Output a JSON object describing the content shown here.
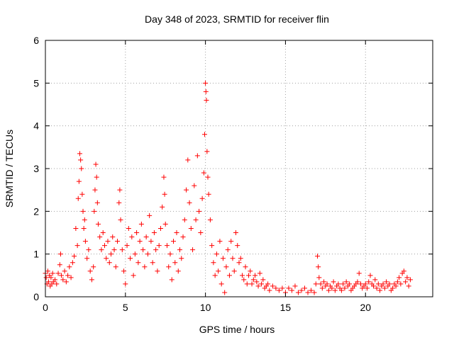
{
  "chart_data": {
    "type": "scatter",
    "title": "Day 348 of 2023, SRMTID for receiver flin",
    "xlabel": "GPS time / hours",
    "ylabel": "SRMTID / TECUs",
    "xlim": [
      0,
      24.2
    ],
    "ylim": [
      0,
      6
    ],
    "xticks": [
      0,
      5,
      10,
      15,
      20
    ],
    "yticks": [
      0,
      1,
      2,
      3,
      4,
      5,
      6
    ],
    "grid": true,
    "marker": "plus",
    "color": "#ff0000",
    "series": [
      {
        "name": "SRMTID",
        "points": [
          [
            0.0,
            0.55
          ],
          [
            0.05,
            0.45
          ],
          [
            0.1,
            0.3
          ],
          [
            0.15,
            0.6
          ],
          [
            0.2,
            0.35
          ],
          [
            0.25,
            0.5
          ],
          [
            0.3,
            0.25
          ],
          [
            0.35,
            0.45
          ],
          [
            0.4,
            0.3
          ],
          [
            0.45,
            0.55
          ],
          [
            0.5,
            0.35
          ],
          [
            0.6,
            0.4
          ],
          [
            0.7,
            0.3
          ],
          [
            0.8,
            0.55
          ],
          [
            0.9,
            0.75
          ],
          [
            0.95,
            1.0
          ],
          [
            1.0,
            0.5
          ],
          [
            1.1,
            0.4
          ],
          [
            1.2,
            0.6
          ],
          [
            1.3,
            0.35
          ],
          [
            1.4,
            0.5
          ],
          [
            1.5,
            0.7
          ],
          [
            1.6,
            0.45
          ],
          [
            1.7,
            0.8
          ],
          [
            1.8,
            0.95
          ],
          [
            1.9,
            1.6
          ],
          [
            2.0,
            1.2
          ],
          [
            2.05,
            2.3
          ],
          [
            2.1,
            2.7
          ],
          [
            2.15,
            3.35
          ],
          [
            2.2,
            3.2
          ],
          [
            2.25,
            3.0
          ],
          [
            2.3,
            2.4
          ],
          [
            2.35,
            2.0
          ],
          [
            2.4,
            1.6
          ],
          [
            2.45,
            1.8
          ],
          [
            2.5,
            1.3
          ],
          [
            2.6,
            0.9
          ],
          [
            2.7,
            1.1
          ],
          [
            2.8,
            0.6
          ],
          [
            2.9,
            0.4
          ],
          [
            3.0,
            0.7
          ],
          [
            3.05,
            2.0
          ],
          [
            3.1,
            2.5
          ],
          [
            3.15,
            3.1
          ],
          [
            3.2,
            2.8
          ],
          [
            3.25,
            2.2
          ],
          [
            3.3,
            1.7
          ],
          [
            3.4,
            1.4
          ],
          [
            3.5,
            1.1
          ],
          [
            3.6,
            1.5
          ],
          [
            3.7,
            1.2
          ],
          [
            3.8,
            0.9
          ],
          [
            3.9,
            1.3
          ],
          [
            4.0,
            0.8
          ],
          [
            4.1,
            1.0
          ],
          [
            4.2,
            1.4
          ],
          [
            4.3,
            1.1
          ],
          [
            4.4,
            0.7
          ],
          [
            4.5,
            1.3
          ],
          [
            4.6,
            2.2
          ],
          [
            4.65,
            2.5
          ],
          [
            4.7,
            1.8
          ],
          [
            4.8,
            1.1
          ],
          [
            4.9,
            0.6
          ],
          [
            5.0,
            0.3
          ],
          [
            5.1,
            1.2
          ],
          [
            5.2,
            1.6
          ],
          [
            5.3,
            0.9
          ],
          [
            5.4,
            1.4
          ],
          [
            5.5,
            0.5
          ],
          [
            5.6,
            1.0
          ],
          [
            5.7,
            1.5
          ],
          [
            5.8,
            0.8
          ],
          [
            5.9,
            1.3
          ],
          [
            6.0,
            1.7
          ],
          [
            6.1,
            1.1
          ],
          [
            6.2,
            0.7
          ],
          [
            6.3,
            1.4
          ],
          [
            6.4,
            1.0
          ],
          [
            6.5,
            1.9
          ],
          [
            6.6,
            1.3
          ],
          [
            6.7,
            0.8
          ],
          [
            6.8,
            1.5
          ],
          [
            6.9,
            1.1
          ],
          [
            7.0,
            0.6
          ],
          [
            7.1,
            1.2
          ],
          [
            7.2,
            1.6
          ],
          [
            7.3,
            2.1
          ],
          [
            7.4,
            2.8
          ],
          [
            7.45,
            2.4
          ],
          [
            7.5,
            1.7
          ],
          [
            7.6,
            1.2
          ],
          [
            7.7,
            0.7
          ],
          [
            7.8,
            1.0
          ],
          [
            7.9,
            0.4
          ],
          [
            8.0,
            1.3
          ],
          [
            8.1,
            0.8
          ],
          [
            8.2,
            1.5
          ],
          [
            8.3,
            0.6
          ],
          [
            8.4,
            1.1
          ],
          [
            8.5,
            0.9
          ],
          [
            8.6,
            1.4
          ],
          [
            8.7,
            1.8
          ],
          [
            8.8,
            2.5
          ],
          [
            8.9,
            3.2
          ],
          [
            9.0,
            2.2
          ],
          [
            9.1,
            1.6
          ],
          [
            9.2,
            1.1
          ],
          [
            9.3,
            2.6
          ],
          [
            9.4,
            1.8
          ],
          [
            9.5,
            3.3
          ],
          [
            9.6,
            2.0
          ],
          [
            9.7,
            1.5
          ],
          [
            9.8,
            2.3
          ],
          [
            9.9,
            2.9
          ],
          [
            9.95,
            3.8
          ],
          [
            10.0,
            5.0
          ],
          [
            10.03,
            4.8
          ],
          [
            10.06,
            4.6
          ],
          [
            10.1,
            3.4
          ],
          [
            10.15,
            2.8
          ],
          [
            10.2,
            2.4
          ],
          [
            10.3,
            1.8
          ],
          [
            10.4,
            1.2
          ],
          [
            10.5,
            0.8
          ],
          [
            10.6,
            0.5
          ],
          [
            10.7,
            1.0
          ],
          [
            10.8,
            0.6
          ],
          [
            10.9,
            1.3
          ],
          [
            11.0,
            0.3
          ],
          [
            11.1,
            0.9
          ],
          [
            11.2,
            0.1
          ],
          [
            11.3,
            0.7
          ],
          [
            11.4,
            1.1
          ],
          [
            11.5,
            0.5
          ],
          [
            11.6,
            1.3
          ],
          [
            11.7,
            0.9
          ],
          [
            11.8,
            0.6
          ],
          [
            11.9,
            1.5
          ],
          [
            12.0,
            1.2
          ],
          [
            12.1,
            0.8
          ],
          [
            12.2,
            0.9
          ],
          [
            12.3,
            0.5
          ],
          [
            12.4,
            0.4
          ],
          [
            12.5,
            0.7
          ],
          [
            12.6,
            0.3
          ],
          [
            12.7,
            0.5
          ],
          [
            12.8,
            0.6
          ],
          [
            12.9,
            0.3
          ],
          [
            13.0,
            0.4
          ],
          [
            13.1,
            0.5
          ],
          [
            13.2,
            0.35
          ],
          [
            13.3,
            0.25
          ],
          [
            13.4,
            0.55
          ],
          [
            13.5,
            0.3
          ],
          [
            13.6,
            0.4
          ],
          [
            13.7,
            0.2
          ],
          [
            13.8,
            0.25
          ],
          [
            13.9,
            0.3
          ],
          [
            14.0,
            0.15
          ],
          [
            14.2,
            0.25
          ],
          [
            14.4,
            0.2
          ],
          [
            14.6,
            0.15
          ],
          [
            14.8,
            0.2
          ],
          [
            15.0,
            0.1
          ],
          [
            15.2,
            0.2
          ],
          [
            15.4,
            0.15
          ],
          [
            15.6,
            0.25
          ],
          [
            15.8,
            0.1
          ],
          [
            16.0,
            0.15
          ],
          [
            16.2,
            0.2
          ],
          [
            16.4,
            0.1
          ],
          [
            16.6,
            0.15
          ],
          [
            16.8,
            0.1
          ],
          [
            16.9,
            0.3
          ],
          [
            17.0,
            0.95
          ],
          [
            17.05,
            0.7
          ],
          [
            17.1,
            0.45
          ],
          [
            17.2,
            0.3
          ],
          [
            17.3,
            0.2
          ],
          [
            17.4,
            0.35
          ],
          [
            17.5,
            0.25
          ],
          [
            17.6,
            0.3
          ],
          [
            17.7,
            0.15
          ],
          [
            17.8,
            0.25
          ],
          [
            17.9,
            0.2
          ],
          [
            18.0,
            0.35
          ],
          [
            18.1,
            0.15
          ],
          [
            18.2,
            0.25
          ],
          [
            18.3,
            0.3
          ],
          [
            18.4,
            0.2
          ],
          [
            18.5,
            0.15
          ],
          [
            18.6,
            0.3
          ],
          [
            18.7,
            0.2
          ],
          [
            18.8,
            0.35
          ],
          [
            18.9,
            0.25
          ],
          [
            19.0,
            0.3
          ],
          [
            19.1,
            0.15
          ],
          [
            19.2,
            0.2
          ],
          [
            19.3,
            0.25
          ],
          [
            19.4,
            0.3
          ],
          [
            19.5,
            0.35
          ],
          [
            19.6,
            0.55
          ],
          [
            19.7,
            0.3
          ],
          [
            19.8,
            0.2
          ],
          [
            19.9,
            0.25
          ],
          [
            20.0,
            0.3
          ],
          [
            20.1,
            0.2
          ],
          [
            20.2,
            0.35
          ],
          [
            20.3,
            0.5
          ],
          [
            20.4,
            0.3
          ],
          [
            20.5,
            0.25
          ],
          [
            20.6,
            0.4
          ],
          [
            20.7,
            0.2
          ],
          [
            20.8,
            0.3
          ],
          [
            20.9,
            0.15
          ],
          [
            21.0,
            0.25
          ],
          [
            21.1,
            0.3
          ],
          [
            21.2,
            0.2
          ],
          [
            21.3,
            0.35
          ],
          [
            21.4,
            0.25
          ],
          [
            21.5,
            0.3
          ],
          [
            21.6,
            0.15
          ],
          [
            21.7,
            0.2
          ],
          [
            21.8,
            0.3
          ],
          [
            21.9,
            0.25
          ],
          [
            22.0,
            0.35
          ],
          [
            22.1,
            0.45
          ],
          [
            22.2,
            0.3
          ],
          [
            22.3,
            0.55
          ],
          [
            22.4,
            0.6
          ],
          [
            22.5,
            0.35
          ],
          [
            22.6,
            0.45
          ],
          [
            22.7,
            0.25
          ],
          [
            22.8,
            0.4
          ]
        ]
      }
    ]
  }
}
